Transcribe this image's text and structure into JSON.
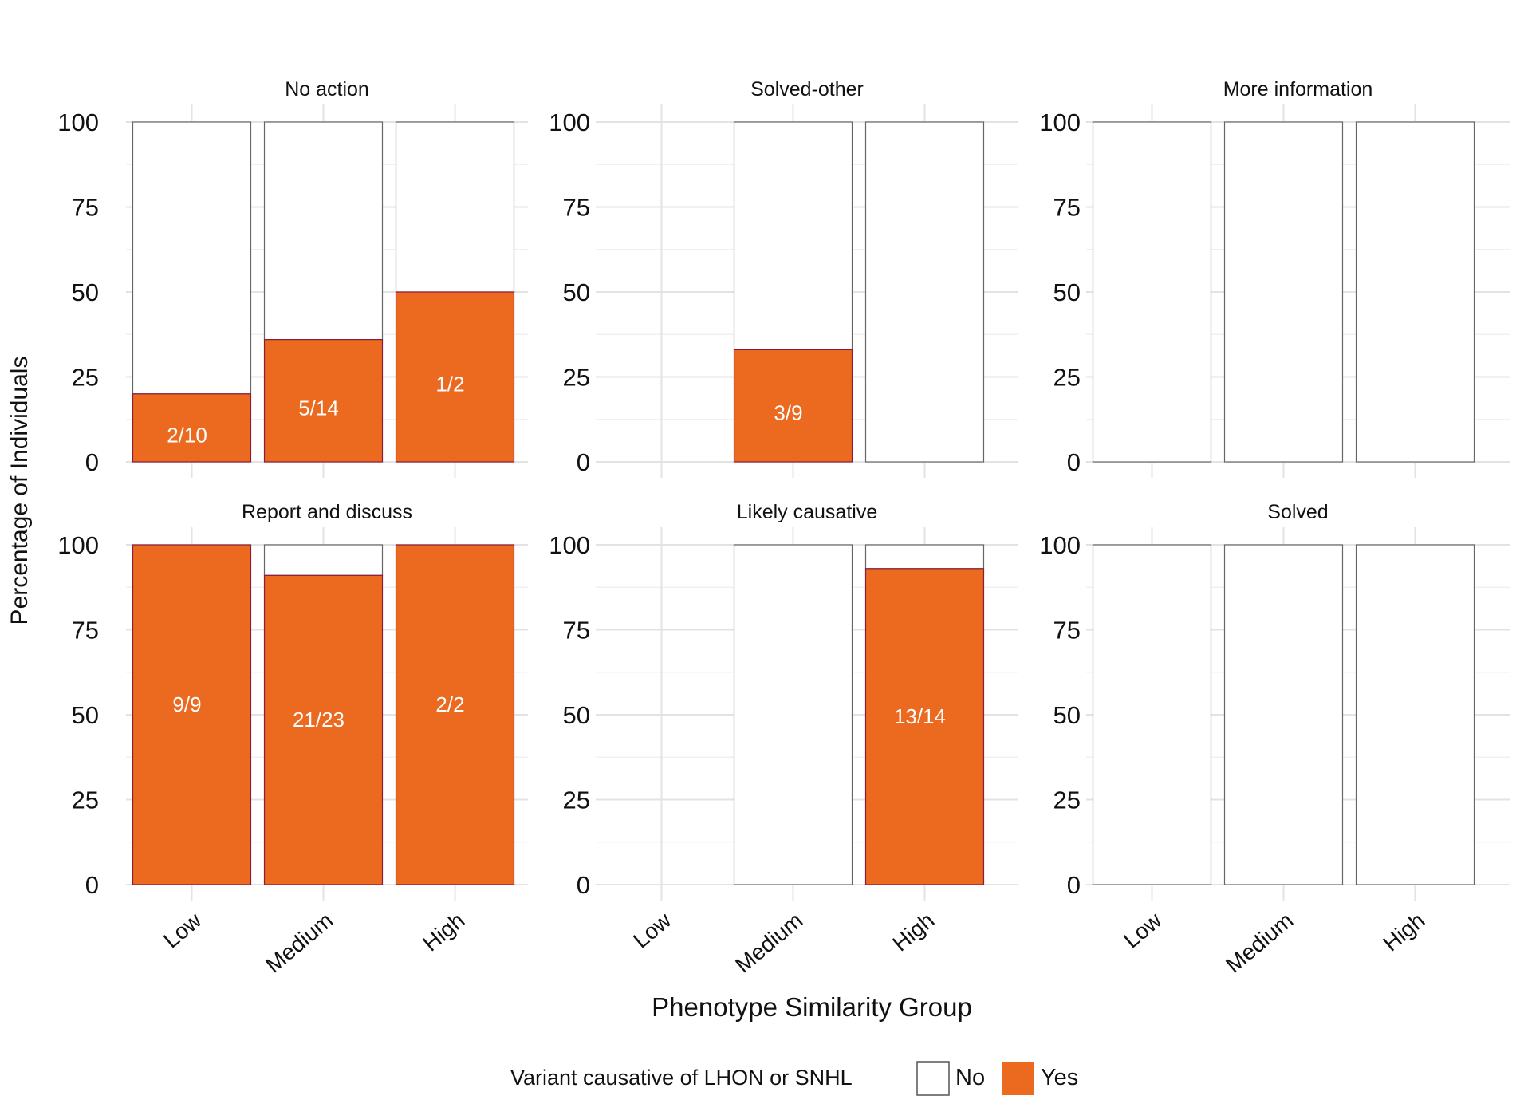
{
  "chart_data": {
    "type": "bar",
    "stacked": true,
    "ylabel": "Percentage of Individuals",
    "xlabel": "Phenotype Similarity Group",
    "categories": [
      "Low",
      "Medium",
      "High"
    ],
    "yticks": [
      0,
      25,
      50,
      75,
      100
    ],
    "ylim": [
      0,
      100
    ],
    "grid": true,
    "legend": {
      "title": "Variant causative of LHON or SNHL",
      "entries": [
        {
          "label": "No",
          "color": "#ffffff"
        },
        {
          "label": "Yes",
          "color": "#eb6a1f"
        }
      ],
      "placement": "bottom"
    },
    "colors": {
      "yes": "#eb6a1f",
      "no": "#ffffff",
      "grid": "#e6e6e6"
    },
    "panels": [
      {
        "title": "No action",
        "bars": [
          {
            "category": "Low",
            "yes": 20,
            "label": "2/10"
          },
          {
            "category": "Medium",
            "yes": 36,
            "label": "5/14"
          },
          {
            "category": "High",
            "yes": 50,
            "label": "1/2"
          }
        ]
      },
      {
        "title": "Solved-other",
        "bars": [
          {
            "category": "Medium",
            "yes": 33,
            "label": "3/9"
          },
          {
            "category": "High",
            "yes": 0,
            "label": ""
          }
        ]
      },
      {
        "title": "More information",
        "bars": [
          {
            "category": "Low",
            "yes": 0,
            "label": ""
          },
          {
            "category": "Medium",
            "yes": 0,
            "label": ""
          },
          {
            "category": "High",
            "yes": 0,
            "label": ""
          }
        ]
      },
      {
        "title": "Report and discuss",
        "bars": [
          {
            "category": "Low",
            "yes": 100,
            "label": "9/9"
          },
          {
            "category": "Medium",
            "yes": 91,
            "label": "21/23"
          },
          {
            "category": "High",
            "yes": 100,
            "label": "2/2"
          }
        ]
      },
      {
        "title": "Likely causative",
        "bars": [
          {
            "category": "Medium",
            "yes": 0,
            "label": ""
          },
          {
            "category": "High",
            "yes": 93,
            "label": "13/14"
          }
        ]
      },
      {
        "title": "Solved",
        "bars": [
          {
            "category": "Low",
            "yes": 0,
            "label": ""
          },
          {
            "category": "Medium",
            "yes": 0,
            "label": ""
          },
          {
            "category": "High",
            "yes": 0,
            "label": ""
          }
        ]
      }
    ]
  }
}
